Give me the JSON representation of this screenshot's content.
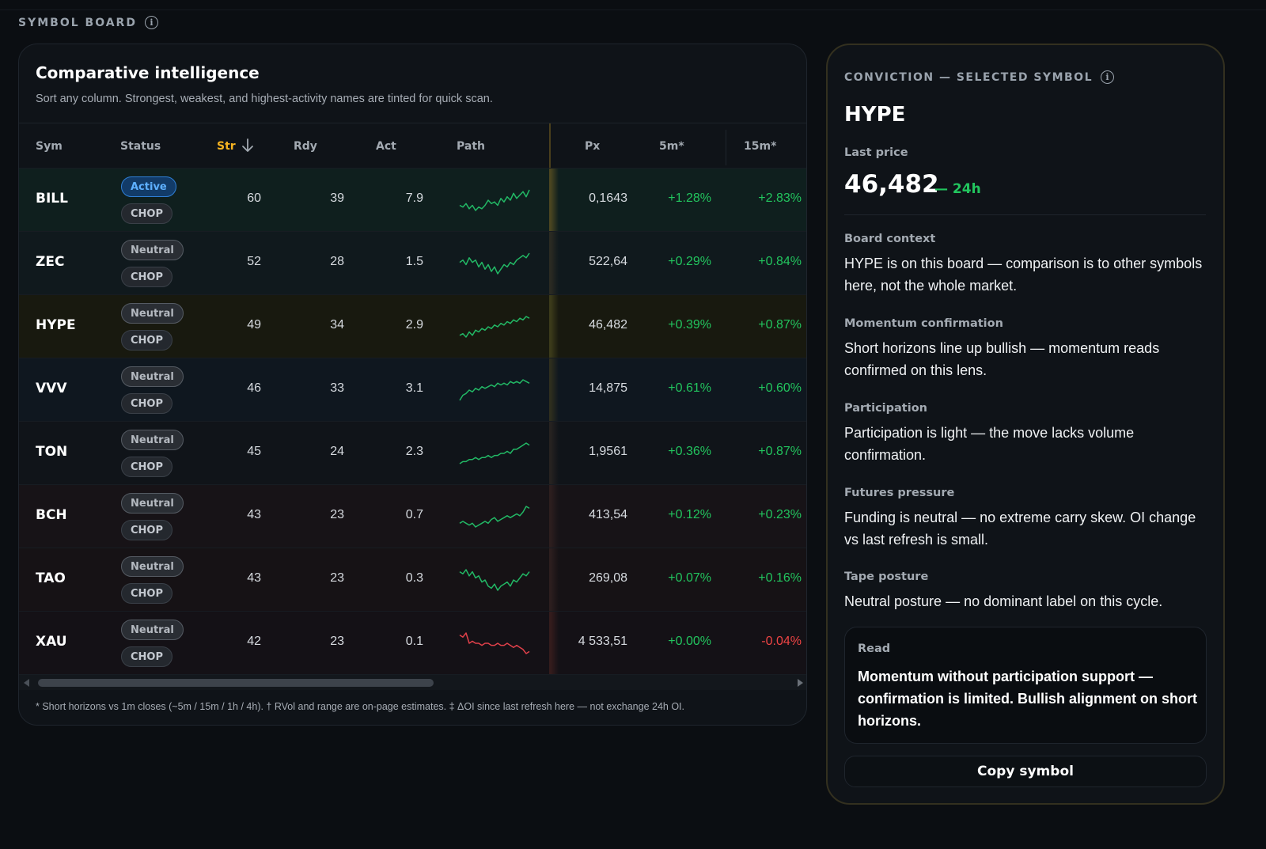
{
  "board": {
    "label": "SYMBOL BOARD"
  },
  "intel": {
    "title": "Comparative intelligence",
    "subtitle": "Sort any column. Strongest, weakest, and highest-activity names are tinted for quick scan."
  },
  "columns": {
    "sym": "Sym",
    "status": "Status",
    "str": "Str",
    "rdy": "Rdy",
    "act": "Act",
    "path": "Path",
    "px": "Px",
    "m5": "5m*",
    "m15": "15m*"
  },
  "rows": [
    {
      "sym": "BILL",
      "status": "Active",
      "regime": "CHOP",
      "str": "60",
      "rdy": "39",
      "act": "7.9",
      "px": "0,1643",
      "m5": "+1.28%",
      "m15": "+2.83%",
      "path": [
        5,
        4,
        6,
        3,
        5,
        2,
        4,
        3,
        5,
        8,
        6,
        7,
        5,
        9,
        7,
        10,
        8,
        12,
        9,
        11,
        13,
        10,
        14
      ],
      "tone": "up"
    },
    {
      "sym": "ZEC",
      "status": "Neutral",
      "regime": "CHOP",
      "str": "52",
      "rdy": "28",
      "act": "1.5",
      "px": "522,64",
      "m5": "+0.29%",
      "m15": "+0.84%",
      "path": [
        9,
        10,
        8,
        11,
        9,
        10,
        7,
        9,
        6,
        8,
        5,
        7,
        4,
        6,
        8,
        7,
        9,
        8,
        10,
        11,
        12,
        11,
        13
      ],
      "tone": "up"
    },
    {
      "sym": "HYPE",
      "status": "Neutral",
      "regime": "CHOP",
      "str": "49",
      "rdy": "34",
      "act": "2.9",
      "px": "46,482",
      "m5": "+0.39%",
      "m15": "+0.87%",
      "path": [
        3,
        4,
        2,
        5,
        3,
        6,
        5,
        7,
        6,
        8,
        7,
        9,
        8,
        10,
        9,
        11,
        10,
        12,
        11,
        13,
        12,
        14,
        13
      ],
      "tone": "up"
    },
    {
      "sym": "VVV",
      "status": "Neutral",
      "regime": "CHOP",
      "str": "46",
      "rdy": "33",
      "act": "3.1",
      "px": "14,875",
      "m5": "+0.61%",
      "m15": "+0.60%",
      "path": [
        2,
        5,
        6,
        8,
        7,
        9,
        8,
        10,
        9,
        10,
        11,
        10,
        12,
        11,
        12,
        11,
        13,
        12,
        13,
        12,
        14,
        13,
        12
      ],
      "tone": "up"
    },
    {
      "sym": "TON",
      "status": "Neutral",
      "regime": "CHOP",
      "str": "45",
      "rdy": "24",
      "act": "2.3",
      "px": "1,9561",
      "m5": "+0.36%",
      "m15": "+0.87%",
      "path": [
        3,
        4,
        4,
        5,
        5,
        6,
        5,
        6,
        6,
        7,
        6,
        7,
        7,
        8,
        8,
        9,
        8,
        10,
        10,
        11,
        12,
        13,
        12
      ],
      "tone": "up"
    },
    {
      "sym": "BCH",
      "status": "Neutral",
      "regime": "CHOP",
      "str": "43",
      "rdy": "23",
      "act": "0.7",
      "px": "413,54",
      "m5": "+0.12%",
      "m15": "+0.23%",
      "path": [
        5,
        6,
        5,
        4,
        5,
        3,
        4,
        5,
        6,
        5,
        7,
        8,
        6,
        7,
        8,
        9,
        8,
        9,
        10,
        9,
        11,
        14,
        13
      ],
      "tone": "up"
    },
    {
      "sym": "TAO",
      "status": "Neutral",
      "regime": "CHOP",
      "str": "43",
      "rdy": "23",
      "act": "0.3",
      "px": "269,08",
      "m5": "+0.07%",
      "m15": "+0.16%",
      "path": [
        12,
        11,
        13,
        10,
        12,
        9,
        10,
        7,
        8,
        5,
        4,
        6,
        3,
        5,
        6,
        7,
        5,
        8,
        7,
        9,
        11,
        10,
        12
      ],
      "tone": "up"
    },
    {
      "sym": "XAU",
      "status": "Neutral",
      "regime": "CHOP",
      "str": "42",
      "rdy": "23",
      "act": "0.1",
      "px": "4 533,51",
      "m5": "+0.00%",
      "m15": "-0.04%",
      "path": [
        13,
        12,
        14,
        9,
        10,
        9,
        9,
        8,
        9,
        9,
        8,
        8,
        9,
        8,
        8,
        9,
        8,
        7,
        8,
        7,
        6,
        4,
        5
      ],
      "tone": "down"
    }
  ],
  "footnote": "* Short horizons vs 1m closes (~5m / 15m / 1h / 4h). † RVol and range are on-page estimates. ‡ ΔOI since last refresh here — not exchange 24h OI.",
  "conviction": {
    "label": "CONVICTION — SELECTED SYMBOL",
    "symbol": "HYPE",
    "last_price_label": "Last price",
    "price": "46,482",
    "change": "— 24h",
    "sections": [
      {
        "title": "Board context",
        "body": "HYPE is on this board — comparison is to other symbols here, not the whole market."
      },
      {
        "title": "Momentum confirmation",
        "body": "Short horizons line up bullish — momentum reads confirmed on this lens."
      },
      {
        "title": "Participation",
        "body": "Participation is light — the move lacks volume confirmation."
      },
      {
        "title": "Futures pressure",
        "body": "Funding is neutral — no extreme carry skew. OI change vs last refresh is small."
      },
      {
        "title": "Tape posture",
        "body": "Neutral posture — no dominant label on this cycle."
      }
    ],
    "read_title": "Read",
    "read_body": "Momentum without participation support — confirmation is limited. Bullish alignment on short horizons.",
    "copy_label": "Copy symbol"
  },
  "colors": {
    "accent": "#f5b321",
    "positive": "#22c55e",
    "negative": "#ef4444",
    "active_badge": "#5eb0ff"
  }
}
